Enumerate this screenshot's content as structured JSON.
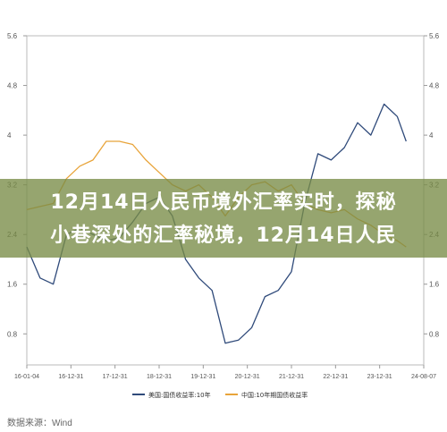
{
  "chart_data": {
    "type": "line",
    "x_tick_labels": [
      "16-01-04",
      "16-12-31",
      "17-12-31",
      "18-12-31",
      "19-12-31",
      "20-12-31",
      "21-12-31",
      "22-12-31",
      "23-12-31",
      "24-08-07"
    ],
    "y_tick_labels": [
      "5.6",
      "4.8",
      "4",
      "3.2",
      "2.4",
      "1.6",
      "0.8"
    ],
    "ylim": [
      0.3,
      5.6
    ],
    "grid": false,
    "legend_position": "bottom",
    "series": [
      {
        "name": "美国:国债收益率:10年",
        "color": "#2f4a7a",
        "x": [
          0,
          0.3,
          0.6,
          0.9,
          1.2,
          1.5,
          1.8,
          2.1,
          2.4,
          2.7,
          3,
          3.3,
          3.6,
          3.9,
          4.2,
          4.5,
          4.8,
          5.1,
          5.4,
          5.7,
          6,
          6.3,
          6.6,
          6.9,
          7.2,
          7.5,
          7.8,
          8.1,
          8.4,
          8.6
        ],
        "values": [
          2.2,
          1.7,
          1.6,
          2.4,
          2.5,
          2.4,
          2.3,
          2.35,
          2.6,
          2.9,
          3.0,
          2.7,
          2.0,
          1.7,
          1.5,
          0.65,
          0.7,
          0.9,
          1.4,
          1.5,
          1.8,
          2.9,
          3.7,
          3.6,
          3.8,
          4.2,
          4.0,
          4.5,
          4.3,
          3.9
        ]
      },
      {
        "name": "中国:10年期国债收益率",
        "color": "#e8a43a",
        "x": [
          0,
          0.3,
          0.6,
          0.9,
          1.2,
          1.5,
          1.8,
          2.1,
          2.4,
          2.7,
          3,
          3.3,
          3.6,
          3.9,
          4.2,
          4.5,
          4.8,
          5.1,
          5.4,
          5.7,
          6,
          6.3,
          6.6,
          6.9,
          7.2,
          7.5,
          7.8,
          8.1,
          8.4,
          8.6
        ],
        "values": [
          2.8,
          2.85,
          2.9,
          3.3,
          3.5,
          3.6,
          3.9,
          3.9,
          3.85,
          3.6,
          3.4,
          3.2,
          3.1,
          3.2,
          3.0,
          2.7,
          3.0,
          3.2,
          3.25,
          3.1,
          3.2,
          2.9,
          2.8,
          2.75,
          2.8,
          2.65,
          2.55,
          2.4,
          2.3,
          2.2
        ]
      }
    ]
  },
  "banner": {
    "line1": "12月14日人民币境外汇率实时，探秘",
    "line2": "小巷深处的汇率秘境，12月14日人民"
  },
  "source_text": "数据来源：Wind"
}
